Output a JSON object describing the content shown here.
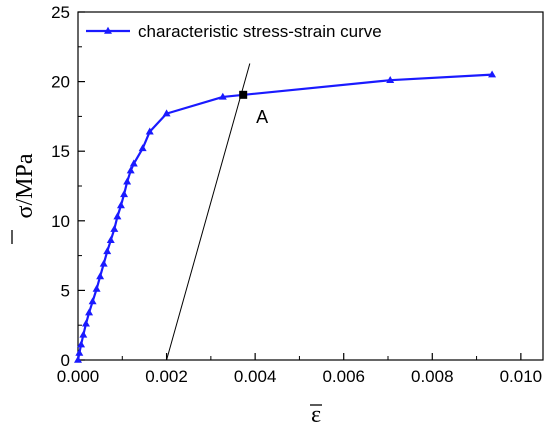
{
  "chart_data": {
    "type": "line",
    "xlabel": "ε",
    "ylabel": "σ/MPa",
    "xlim": [
      0,
      0.0105
    ],
    "ylim": [
      0,
      25
    ],
    "x_ticks": [
      0.0,
      0.002,
      0.004,
      0.006,
      0.008,
      0.01
    ],
    "x_tick_labels": [
      "0.000",
      "0.002",
      "0.004",
      "0.006",
      "0.008",
      "0.010"
    ],
    "y_ticks": [
      0,
      5,
      10,
      15,
      20,
      25
    ],
    "y_tick_labels": [
      "0",
      "5",
      "10",
      "15",
      "20",
      "25"
    ],
    "grid": false,
    "legend_position": "top-left",
    "series": [
      {
        "name": "characteristic stress-strain curve",
        "color": "#1a1aff",
        "marker": "triangle",
        "x": [
          0.0,
          3e-05,
          7e-05,
          0.00012,
          0.00018,
          0.00025,
          0.00033,
          0.00042,
          0.0005,
          0.00058,
          0.00066,
          0.00074,
          0.00082,
          0.00089,
          0.00097,
          0.00104,
          0.00111,
          0.00119,
          0.00126,
          0.00146,
          0.00162,
          0.002,
          0.00327,
          0.00705,
          0.00935
        ],
        "y": [
          0.0,
          0.5,
          1.1,
          1.8,
          2.6,
          3.4,
          4.2,
          5.1,
          6.0,
          6.9,
          7.8,
          8.6,
          9.4,
          10.3,
          11.1,
          11.9,
          12.8,
          13.6,
          14.1,
          15.2,
          16.4,
          17.7,
          18.9,
          20.1,
          20.5
        ]
      }
    ],
    "tangent_line": {
      "color": "#000000",
      "x": [
        0.002,
        0.00388
      ],
      "y": [
        0.0,
        21.3
      ]
    },
    "annotations": [
      {
        "label": "A",
        "x": 0.00373,
        "y": 19.05,
        "marker": "square"
      }
    ]
  }
}
